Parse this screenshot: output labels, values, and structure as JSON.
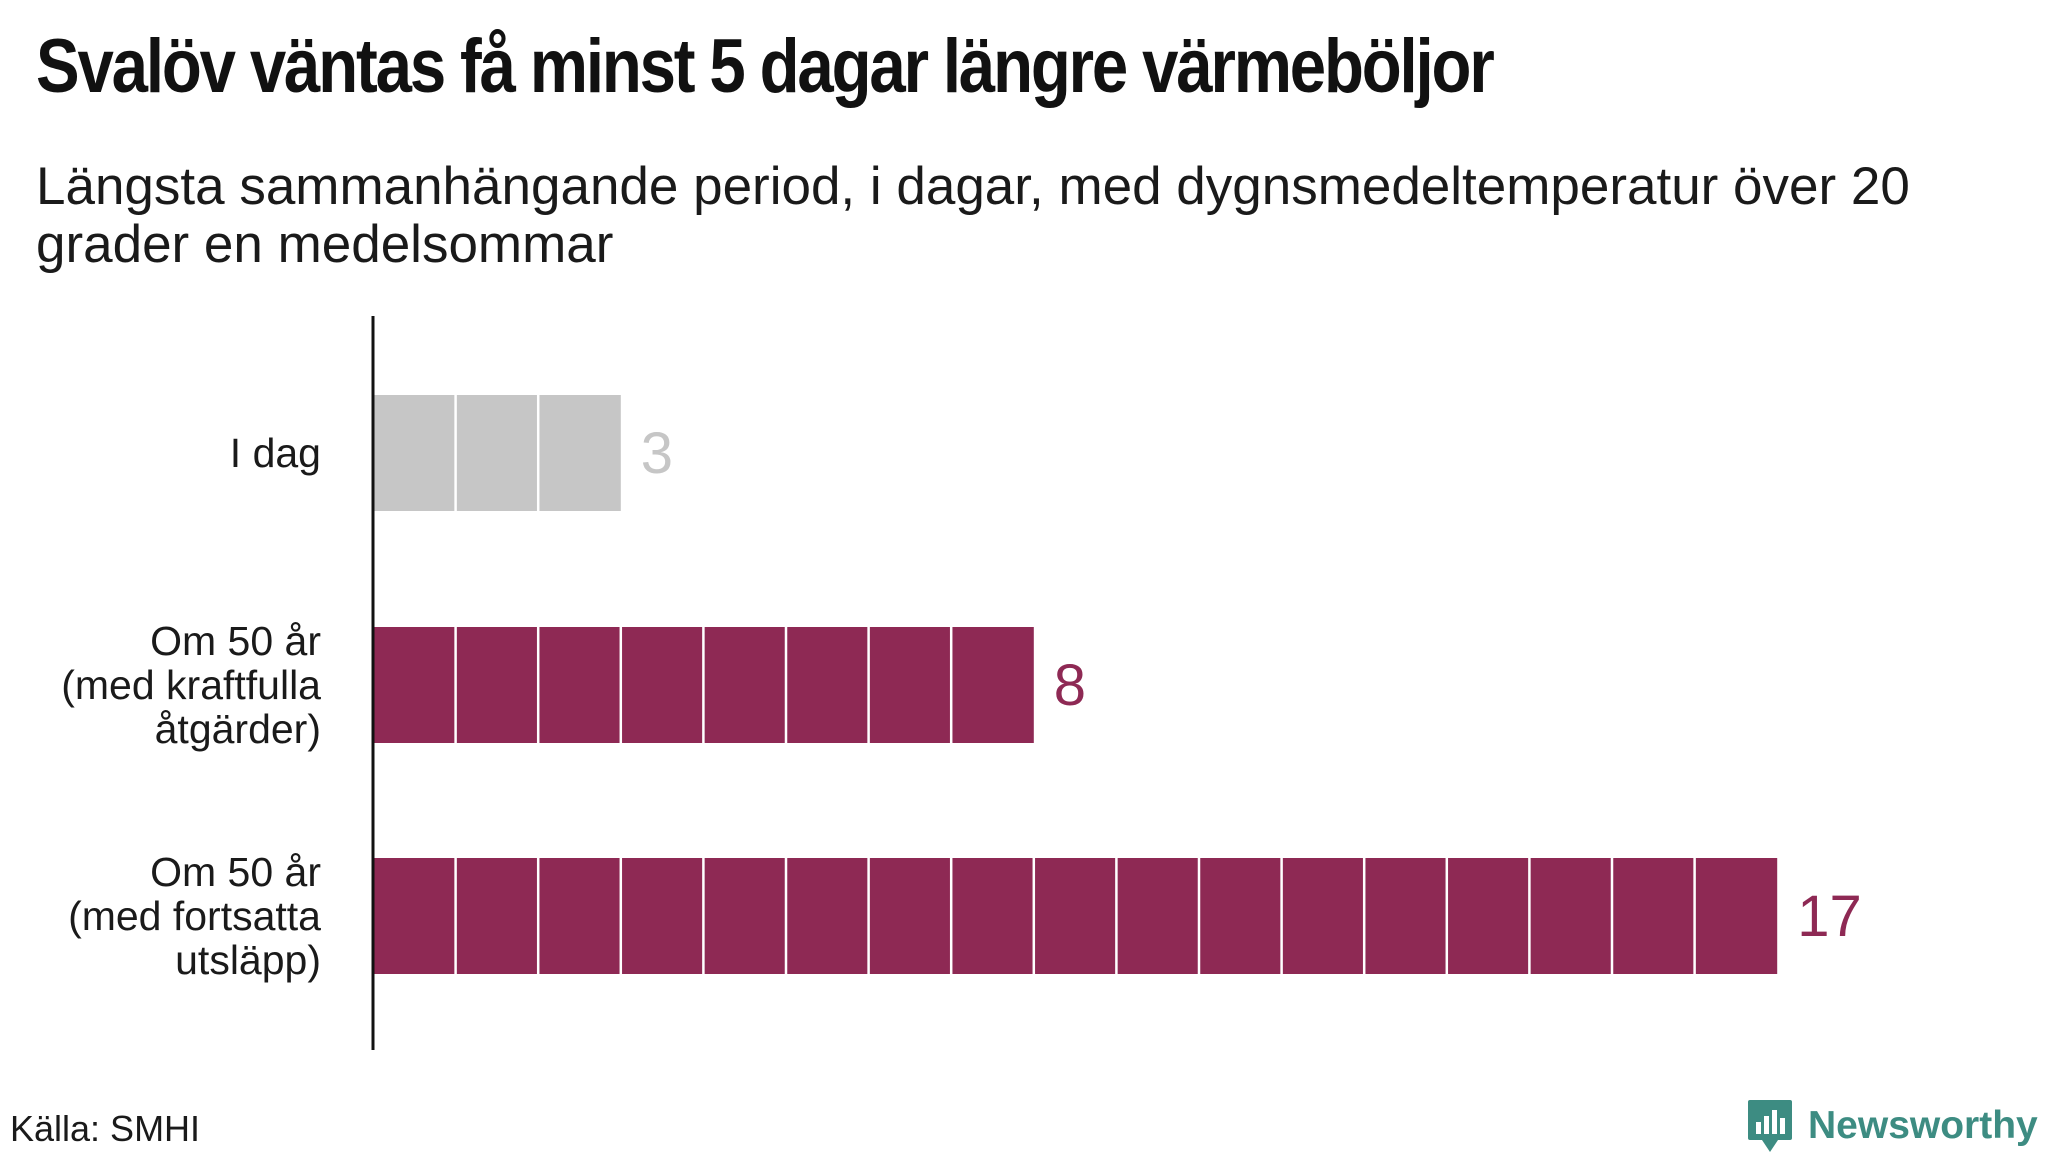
{
  "title": "Svalöv väntas få minst 5 dagar längre värmeböljor",
  "subtitle": "Längsta sammanhängande period, i dagar, med dygnsmedeltemperatur över 20 grader en medelsommar",
  "source": "Källa: SMHI",
  "brand": {
    "name": "Newsworthy",
    "icon": "newsworthy-logo-icon",
    "color": "#3d8c82"
  },
  "chart_data": {
    "type": "bar",
    "orientation": "horizontal",
    "unit_blocks": true,
    "categories": [
      [
        "I dag"
      ],
      [
        "Om 50 år",
        "(med kraftfulla",
        "åtgärder)"
      ],
      [
        "Om 50 år",
        "(med fortsatta",
        "utsläpp)"
      ]
    ],
    "values": [
      3,
      8,
      17
    ],
    "value_labels": [
      "3",
      "8",
      "17"
    ],
    "colors": [
      "#c6c6c6",
      "#8e2954",
      "#8e2954"
    ],
    "label_colors": [
      "#c6c6c6",
      "#8e2954",
      "#8e2954"
    ],
    "xlim": [
      0,
      17
    ],
    "grid": false,
    "xlabel": "",
    "ylabel": ""
  }
}
